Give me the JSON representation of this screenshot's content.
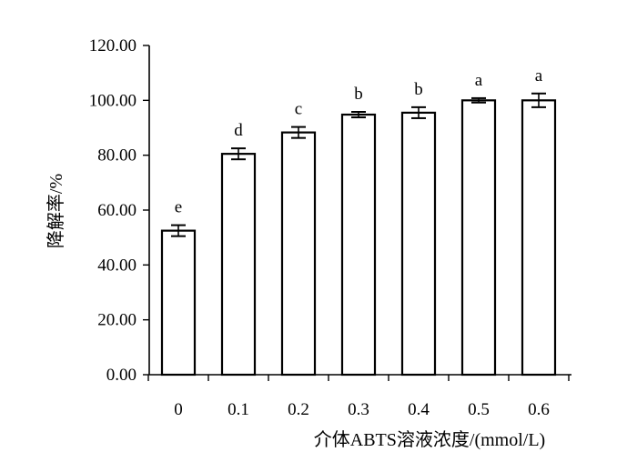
{
  "chart_data": {
    "type": "bar",
    "title": "",
    "xlabel": "介体ABTS溶液浓度/(mmol/L)",
    "ylabel": "降解率/%",
    "categories": [
      "0",
      "0.1",
      "0.2",
      "0.3",
      "0.4",
      "0.5",
      "0.6"
    ],
    "values": [
      52.5,
      80.5,
      88.3,
      94.8,
      95.5,
      100.0,
      100.0
    ],
    "errors": [
      2.0,
      2.0,
      2.0,
      1.0,
      2.0,
      0.8,
      2.5
    ],
    "significance": [
      "e",
      "d",
      "c",
      "b",
      "b",
      "a",
      "a"
    ],
    "yticks": [
      "0.00",
      "20.00",
      "40.00",
      "60.00",
      "80.00",
      "100.00",
      "120.00"
    ],
    "ylim": [
      0,
      120
    ],
    "grid": false,
    "legend": "none",
    "bar_fill": "#ffffff",
    "bar_stroke": "#000000"
  }
}
